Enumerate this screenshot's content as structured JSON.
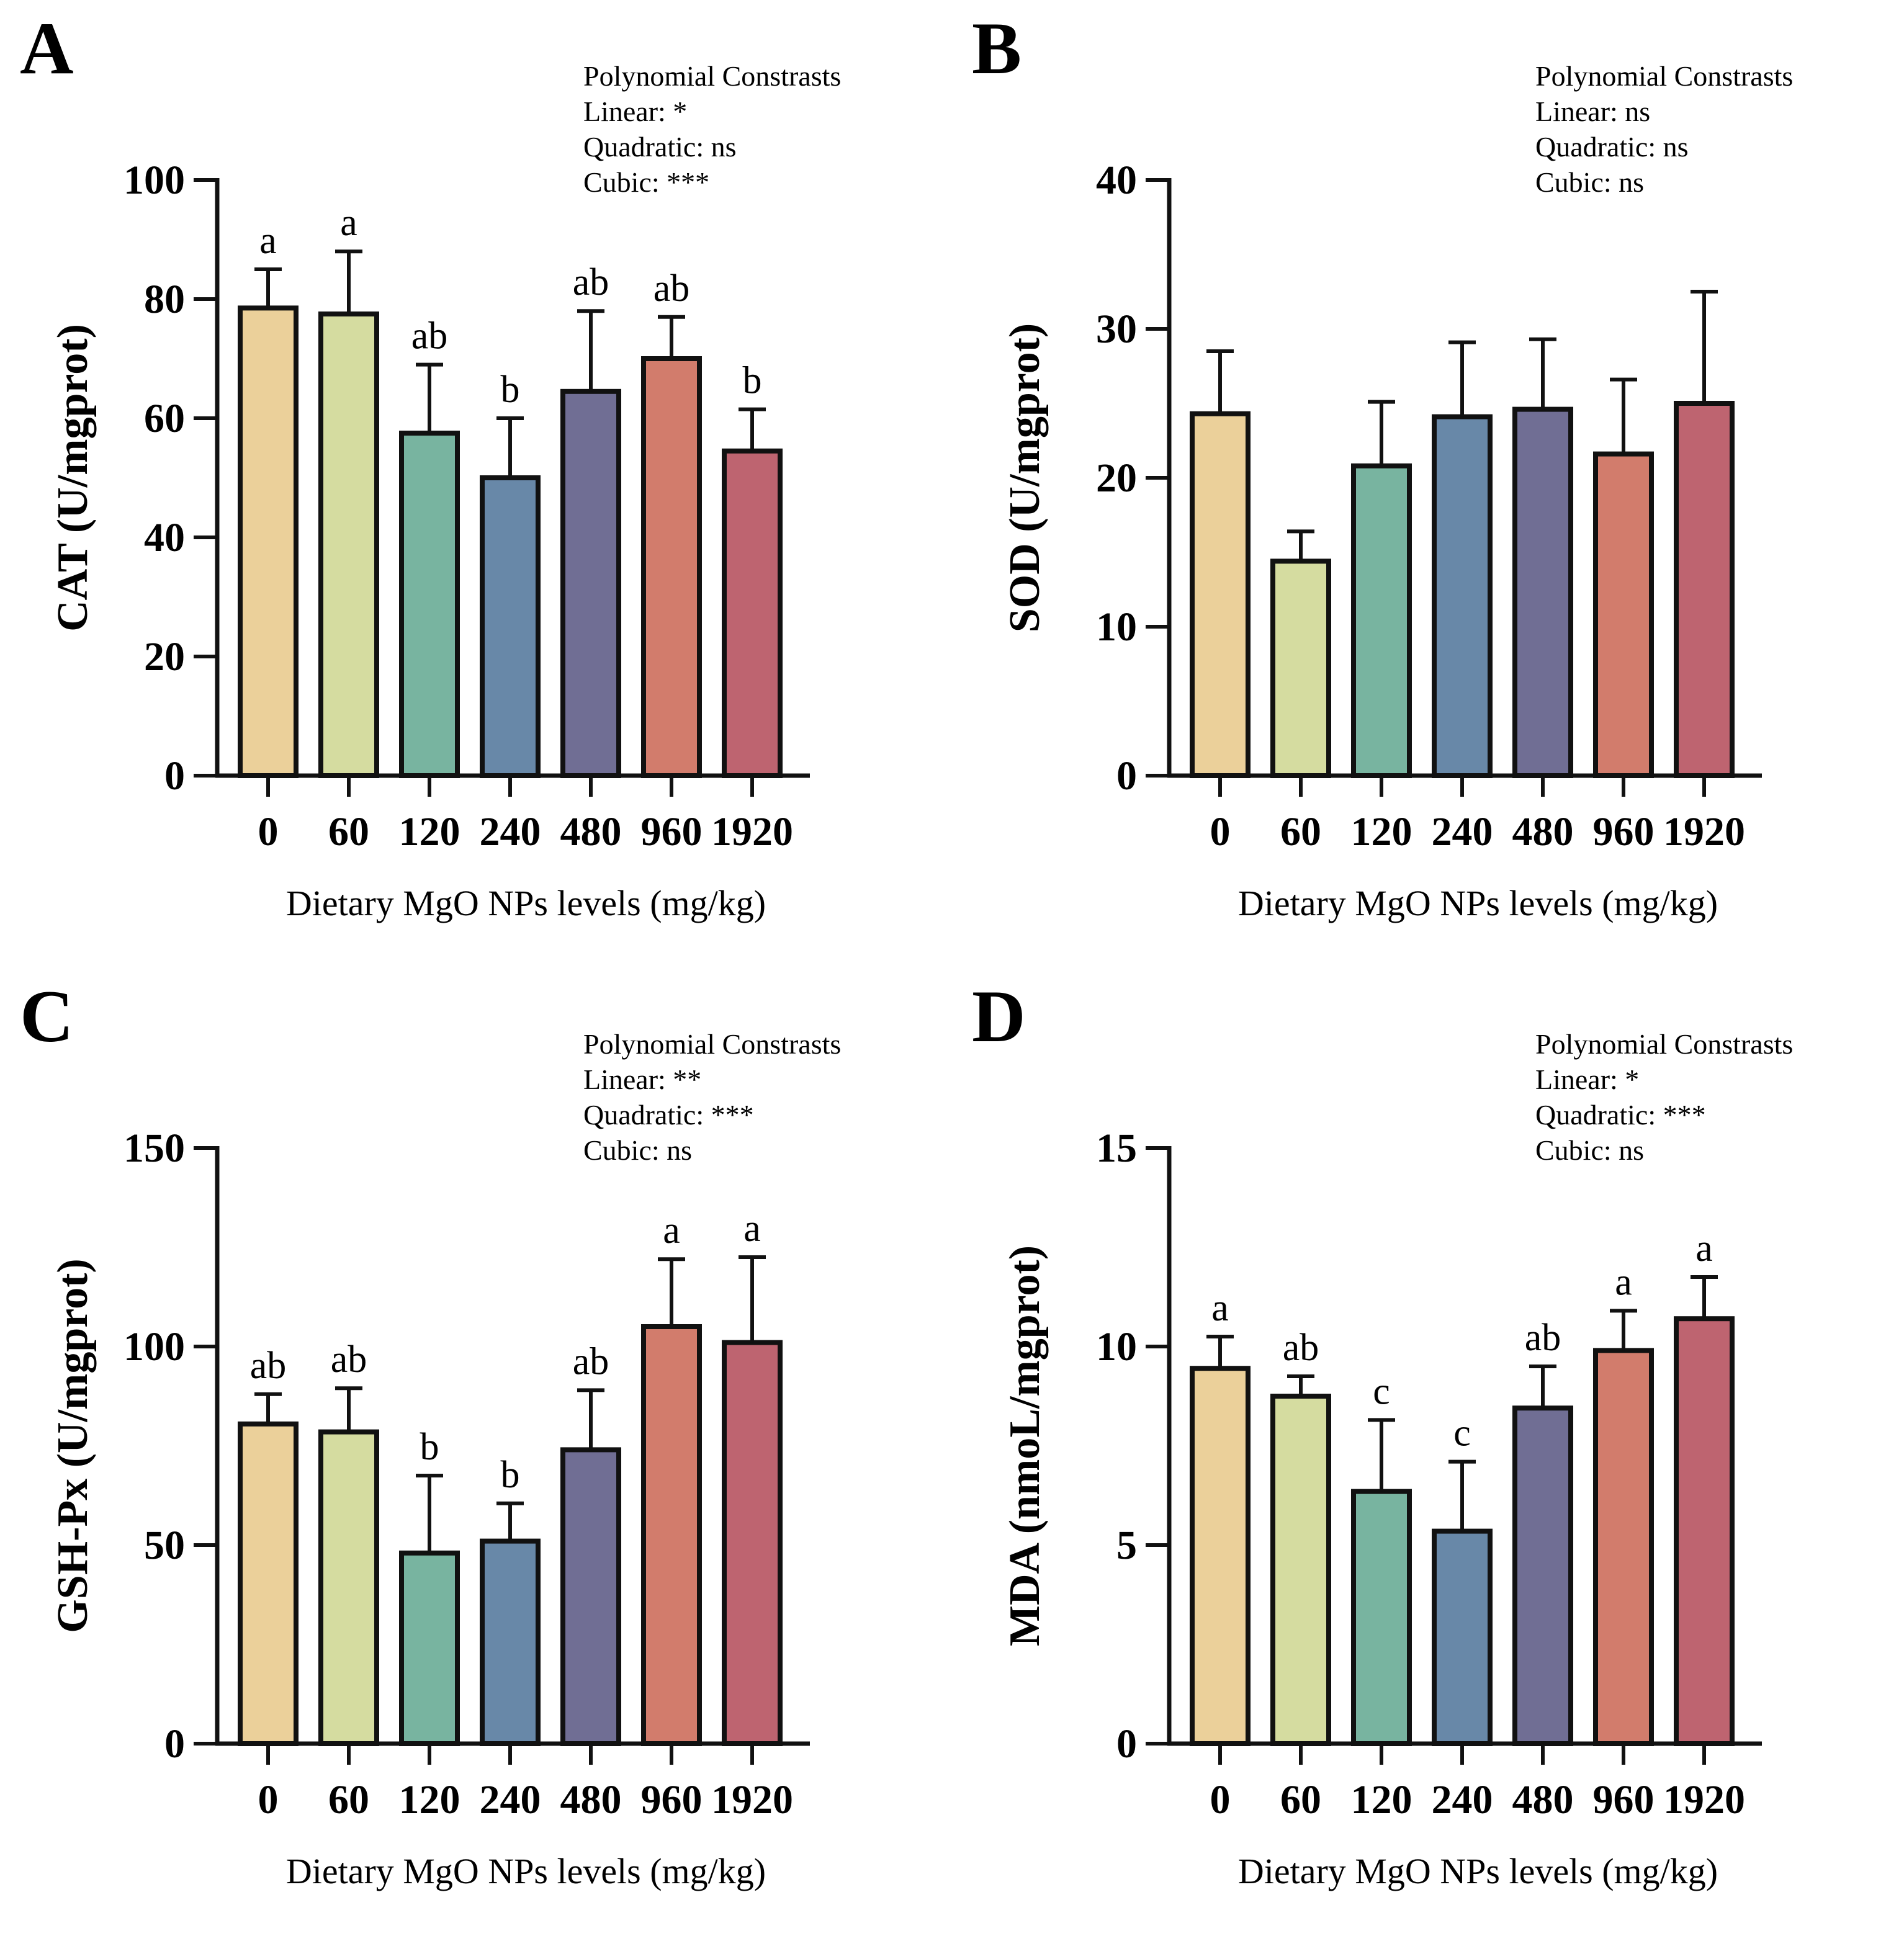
{
  "colors": [
    "#EBD09A",
    "#D5DCA0",
    "#78B4A0",
    "#6888A8",
    "#706E94",
    "#D27C6C",
    "#BE6470"
  ],
  "chart_data": [
    {
      "panel": "A",
      "type": "bar",
      "categories": [
        "0",
        "60",
        "120",
        "240",
        "480",
        "960",
        "1920"
      ],
      "values": [
        78.5,
        77.5,
        57.5,
        50,
        64.5,
        70,
        54.5
      ],
      "errors": [
        6.5,
        10.5,
        11.5,
        10,
        13.5,
        7,
        7
      ],
      "significance": [
        "a",
        "a",
        "ab",
        "b",
        "ab",
        "ab",
        "b"
      ],
      "ylabel": "CAT (U/mgprot)",
      "xlabel": "Dietary MgO NPs levels (mg/kg)",
      "ylim": [
        0,
        100
      ],
      "yticks": [
        0,
        20,
        40,
        60,
        80,
        100
      ],
      "contrasts": [
        "Polynomial Constrasts",
        "Linear: *",
        "Quadratic: ns",
        "Cubic: ***"
      ]
    },
    {
      "panel": "B",
      "type": "bar",
      "categories": [
        "0",
        "60",
        "120",
        "240",
        "480",
        "960",
        "1920"
      ],
      "values": [
        24.3,
        14.4,
        20.8,
        24.1,
        24.6,
        21.6,
        25
      ],
      "errors": [
        4.2,
        2.0,
        4.3,
        5.0,
        4.7,
        5.0,
        7.5
      ],
      "significance": [
        "",
        "",
        "",
        "",
        "",
        "",
        ""
      ],
      "ylabel": "SOD (U/mgprot)",
      "xlabel": "Dietary MgO NPs levels (mg/kg)",
      "ylim": [
        0,
        40
      ],
      "yticks": [
        0,
        10,
        20,
        30,
        40
      ],
      "contrasts": [
        "Polynomial Constrasts",
        "Linear: ns",
        "Quadratic: ns",
        "Cubic: ns"
      ]
    },
    {
      "panel": "C",
      "type": "bar",
      "categories": [
        "0",
        "60",
        "120",
        "240",
        "480",
        "960",
        "1920"
      ],
      "values": [
        80.5,
        78.5,
        48,
        51,
        74,
        105,
        101
      ],
      "errors": [
        7.5,
        11,
        19.5,
        9.5,
        15,
        17,
        21.5
      ],
      "significance": [
        "ab",
        "ab",
        "b",
        "b",
        "ab",
        "a",
        "a"
      ],
      "ylabel": "GSH-Px (U/mgprot)",
      "xlabel": "Dietary MgO NPs levels (mg/kg)",
      "ylim": [
        0,
        150
      ],
      "yticks": [
        0,
        50,
        100,
        150
      ],
      "contrasts": [
        "Polynomial Constrasts",
        "Linear: **",
        "Quadratic: ***",
        "Cubic: ns"
      ]
    },
    {
      "panel": "D",
      "type": "bar",
      "categories": [
        "0",
        "60",
        "120",
        "240",
        "480",
        "960",
        "1920"
      ],
      "values": [
        9.45,
        8.75,
        6.35,
        5.35,
        8.45,
        9.9,
        10.7
      ],
      "errors": [
        0.8,
        0.5,
        1.8,
        1.75,
        1.05,
        1.0,
        1.05
      ],
      "significance": [
        "a",
        "ab",
        "c",
        "c",
        "ab",
        "a",
        "a"
      ],
      "ylabel": "MDA (nmoL/mgprot)",
      "xlabel": "Dietary MgO NPs levels (mg/kg)",
      "ylim": [
        0,
        15
      ],
      "yticks": [
        0,
        5,
        10,
        15
      ],
      "contrasts": [
        "Polynomial Constrasts",
        "Linear: *",
        "Quadratic: ***",
        "Cubic: ns"
      ]
    }
  ]
}
